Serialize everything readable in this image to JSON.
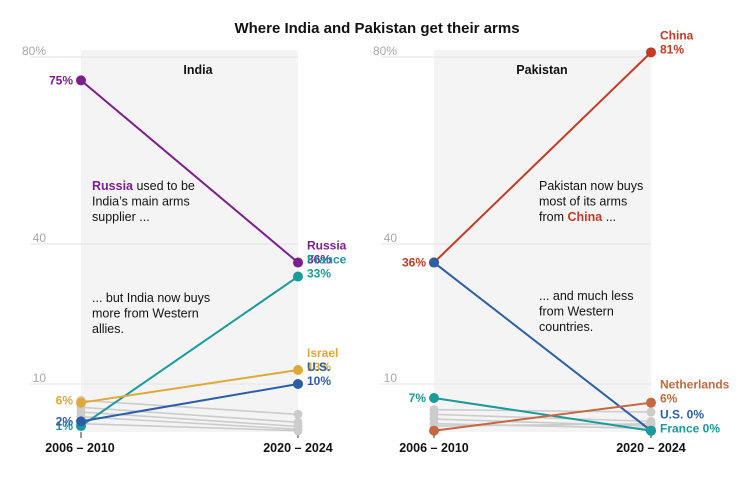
{
  "title": "Where India and Pakistan get their arms",
  "chart_data": [
    {
      "type": "line",
      "panel": "India",
      "x": [
        "2006 – 2010",
        "2020 – 2024"
      ],
      "yticks": [
        "80%",
        "40",
        "10"
      ],
      "ylabel": "",
      "series": [
        {
          "name": "Russia",
          "values": [
            75,
            36
          ],
          "color": "#7d1e8e",
          "highlight": true,
          "start_label": "75%",
          "end_label": "Russia",
          "end_value": "36%"
        },
        {
          "name": "France",
          "values": [
            1,
            33
          ],
          "color": "#1a9a9a",
          "highlight": true,
          "start_label": "1%",
          "end_label": "France",
          "end_value": "33%"
        },
        {
          "name": "Israel",
          "values": [
            6,
            13
          ],
          "color": "#e0a837",
          "highlight": true,
          "start_label": "6%",
          "end_label": "Israel",
          "end_value": "13%"
        },
        {
          "name": "U.S.",
          "values": [
            2,
            10
          ],
          "color": "#2b5ea7",
          "highlight": true,
          "start_label": "2%",
          "end_label": "U.S.",
          "end_value": "10%"
        },
        {
          "name": "Other 1",
          "values": [
            6.5,
            3.5
          ],
          "color": "#cccccc",
          "highlight": false
        },
        {
          "name": "Other 2",
          "values": [
            5,
            1.8
          ],
          "color": "#cccccc",
          "highlight": false
        },
        {
          "name": "Other 3",
          "values": [
            4,
            0.9
          ],
          "color": "#cccccc",
          "highlight": false
        },
        {
          "name": "Other 4",
          "values": [
            3,
            0.3
          ],
          "color": "#cccccc",
          "highlight": false
        },
        {
          "name": "Other 5",
          "values": [
            1.5,
            0
          ],
          "color": "#cccccc",
          "highlight": false
        }
      ],
      "annotations": [
        {
          "parts": [
            {
              "text": "Russia",
              "color": "#7d1e8e",
              "bold": true
            },
            {
              "text": " used to be"
            }
          ],
          "lines": [
            "India’s main arms",
            "supplier ..."
          ]
        },
        {
          "lines": [
            "... but India now buys",
            "more from Western",
            "allies."
          ]
        }
      ]
    },
    {
      "type": "line",
      "panel": "Pakistan",
      "x": [
        "2006 – 2010",
        "2020 – 2024"
      ],
      "yticks": [
        "80%",
        "40",
        "10"
      ],
      "ylabel": "",
      "series": [
        {
          "name": "China",
          "values": [
            36,
            81
          ],
          "color": "#c23b22",
          "highlight": true,
          "start_label": "36%",
          "end_label": "China",
          "end_value": "81%"
        },
        {
          "name": "U.S.",
          "values": [
            36,
            0
          ],
          "color": "#2b5ea7",
          "highlight": true,
          "end_label": "U.S. 0%"
        },
        {
          "name": "France",
          "values": [
            7,
            0
          ],
          "color": "#1a9a9a",
          "highlight": true,
          "start_label": "7%",
          "end_label": "France 0%"
        },
        {
          "name": "Netherlands",
          "values": [
            0,
            6
          ],
          "color": "#c5673f",
          "highlight": true,
          "end_label": "Netherlands",
          "end_value": "6%"
        },
        {
          "name": "Other 1",
          "values": [
            4.5,
            4
          ],
          "color": "#cccccc",
          "highlight": false
        },
        {
          "name": "Other 2",
          "values": [
            3.5,
            2
          ],
          "color": "#cccccc",
          "highlight": false
        },
        {
          "name": "Other 3",
          "values": [
            2.5,
            1
          ],
          "color": "#cccccc",
          "highlight": false
        },
        {
          "name": "Other 4",
          "values": [
            1.5,
            0.5
          ],
          "color": "#cccccc",
          "highlight": false
        },
        {
          "name": "Other 5",
          "values": [
            1,
            1.5
          ],
          "color": "#cccccc",
          "highlight": false
        }
      ],
      "annotations": [
        {
          "lines": [
            "Pakistan now buys",
            "most of its arms"
          ],
          "parts_last": [
            {
              "text": "from "
            },
            {
              "text": "China",
              "color": "#c23b22",
              "bold": true
            },
            {
              "text": " ..."
            }
          ]
        },
        {
          "lines": [
            "... and much less",
            "from Western",
            "countries."
          ]
        }
      ]
    }
  ]
}
